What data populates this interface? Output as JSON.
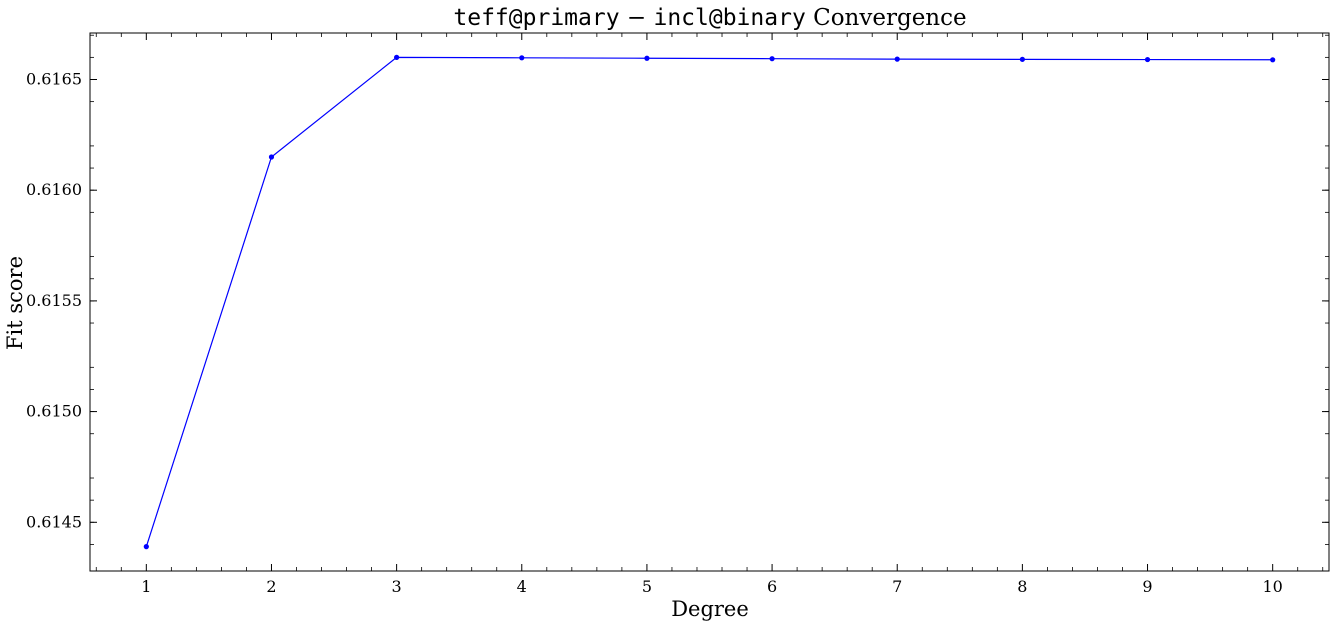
{
  "chart_data": {
    "type": "line",
    "title": {
      "part1": "teff@primary",
      "sep": " − ",
      "part2": "incl@binary",
      "part3": " Convergence"
    },
    "xlabel": "Degree",
    "ylabel": "Fit score",
    "x": [
      1,
      2,
      3,
      4,
      5,
      6,
      7,
      8,
      9,
      10
    ],
    "series": [
      {
        "values": [
          0.61439,
          0.61615,
          0.6166,
          0.616598,
          0.616596,
          0.616594,
          0.616592,
          0.616591,
          0.61659,
          0.616589
        ]
      }
    ],
    "xlim": [
      0.55,
      10.45
    ],
    "ylim": [
      0.61428,
      0.61671
    ],
    "xticks": [
      1,
      2,
      3,
      4,
      5,
      6,
      7,
      8,
      9,
      10
    ],
    "xtick_labels": [
      "1",
      "2",
      "3",
      "4",
      "5",
      "6",
      "7",
      "8",
      "9",
      "10"
    ],
    "yticks": [
      0.6145,
      0.615,
      0.6155,
      0.616,
      0.6165
    ],
    "ytick_labels": [
      "0.6145",
      "0.6150",
      "0.6155",
      "0.6160",
      "0.6165"
    ],
    "line_color": "#0000ff",
    "grid": false,
    "legend": "none"
  }
}
